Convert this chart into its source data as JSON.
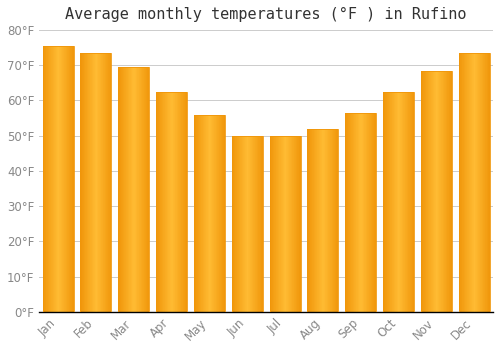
{
  "title": "Average monthly temperatures (°F ) in Rufino",
  "months": [
    "Jan",
    "Feb",
    "Mar",
    "Apr",
    "May",
    "Jun",
    "Jul",
    "Aug",
    "Sep",
    "Oct",
    "Nov",
    "Dec"
  ],
  "values": [
    75.5,
    73.5,
    69.5,
    62.5,
    56.0,
    50.0,
    50.0,
    52.0,
    56.5,
    62.5,
    68.5,
    73.5
  ],
  "bar_color_center": "#FFBB33",
  "bar_color_edge": "#F0960A",
  "background_color": "#FFFFFF",
  "grid_color": "#CCCCCC",
  "text_color": "#888888",
  "ylim": [
    0,
    80
  ],
  "yticks": [
    0,
    10,
    20,
    30,
    40,
    50,
    60,
    70,
    80
  ],
  "title_fontsize": 11,
  "tick_fontsize": 8.5
}
